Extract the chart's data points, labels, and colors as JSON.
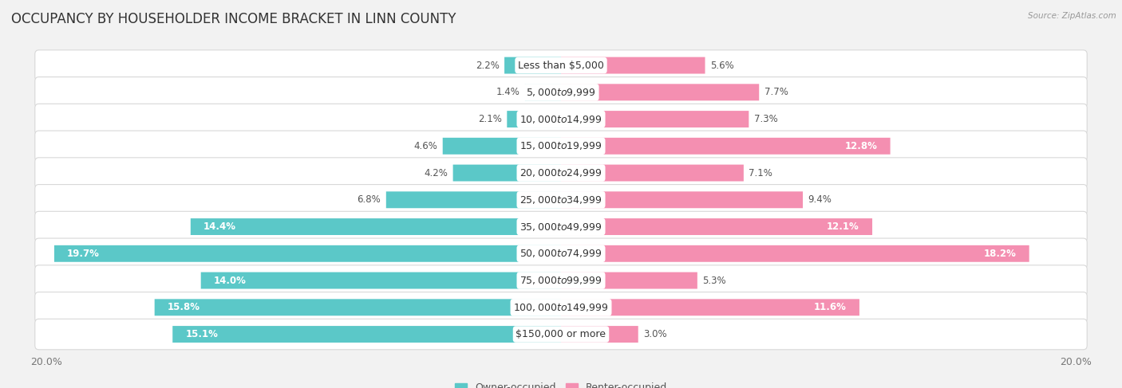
{
  "title": "OCCUPANCY BY HOUSEHOLDER INCOME BRACKET IN LINN COUNTY",
  "source": "Source: ZipAtlas.com",
  "categories": [
    "Less than $5,000",
    "$5,000 to $9,999",
    "$10,000 to $14,999",
    "$15,000 to $19,999",
    "$20,000 to $24,999",
    "$25,000 to $34,999",
    "$35,000 to $49,999",
    "$50,000 to $74,999",
    "$75,000 to $99,999",
    "$100,000 to $149,999",
    "$150,000 or more"
  ],
  "owner_values": [
    2.2,
    1.4,
    2.1,
    4.6,
    4.2,
    6.8,
    14.4,
    19.7,
    14.0,
    15.8,
    15.1
  ],
  "renter_values": [
    5.6,
    7.7,
    7.3,
    12.8,
    7.1,
    9.4,
    12.1,
    18.2,
    5.3,
    11.6,
    3.0
  ],
  "owner_color": "#5bc8c8",
  "renter_color": "#f48fb1",
  "bg_color": "#f2f2f2",
  "row_bg_color": "#ffffff",
  "row_border_color": "#d8d8d8",
  "axis_max": 20.0,
  "bar_height": 0.62,
  "title_fontsize": 12,
  "label_fontsize": 9,
  "tick_fontsize": 9,
  "legend_fontsize": 9,
  "value_fontsize": 8.5
}
